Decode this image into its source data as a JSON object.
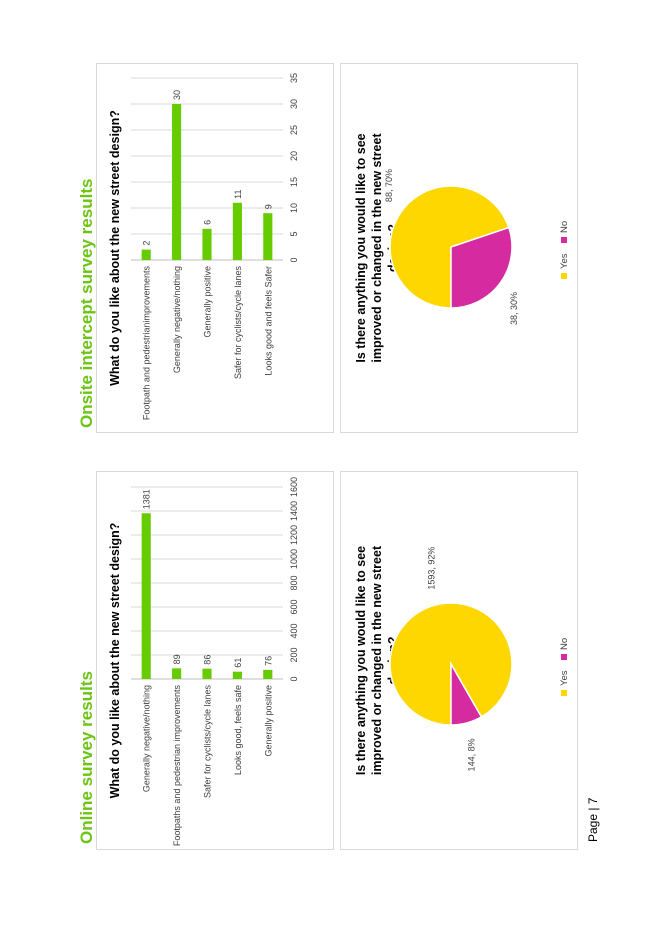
{
  "online": {
    "heading": "Online survey results"
  },
  "onsite": {
    "heading": "Onsite intercept survey results"
  },
  "page": {
    "label": "Page | 7"
  },
  "colors": {
    "bar": "#66cc00",
    "yes": "#ffd700",
    "no": "#d62aa0",
    "heading": "#6cc414"
  },
  "chart_data": [
    {
      "type": "bar",
      "title": "What do you like about the new street design?",
      "categories": [
        "Generally negative/nothing",
        "Footpaths and pedestrian improvements",
        "Safer for cyclists/cycle lanes",
        "Looks good, feels safe",
        "Generally positive"
      ],
      "values": [
        1381,
        89,
        86,
        61,
        76
      ],
      "xlim": [
        0,
        1600
      ],
      "ticks": [
        "0",
        "200",
        "400",
        "600",
        "800",
        "1000",
        "1200",
        "1400",
        "1600"
      ],
      "grid": true
    },
    {
      "type": "pie",
      "title": "Is there anything you would like to see improved or changed in the new street design?",
      "slices": [
        {
          "name": "Yes",
          "value": 1593,
          "label": "1593, 92%"
        },
        {
          "name": "No",
          "value": 144,
          "label": "144, 8%"
        }
      ],
      "legend": [
        "Yes",
        "No"
      ],
      "legend_position": "bottom"
    },
    {
      "type": "bar",
      "title": "What do you like about the new street design?",
      "categories": [
        "Footpath and pedestrianimprovements",
        "Generally  negative/nothing",
        "Generally positive",
        "Safer for cyclists/cycle lanes",
        "Looks good and feels Safer"
      ],
      "values": [
        2,
        30,
        6,
        11,
        9
      ],
      "xlim": [
        0,
        35
      ],
      "ticks": [
        "0",
        "5",
        "10",
        "15",
        "20",
        "25",
        "30",
        "35"
      ],
      "grid": true
    },
    {
      "type": "pie",
      "title": "Is there anything you would like to see improved or changed in the new street design?",
      "slices": [
        {
          "name": "Yes",
          "value": 88,
          "label": "88, 70%"
        },
        {
          "name": "No",
          "value": 38,
          "label": "38, 30%"
        }
      ],
      "legend": [
        "Yes",
        "No"
      ],
      "legend_position": "bottom"
    }
  ]
}
